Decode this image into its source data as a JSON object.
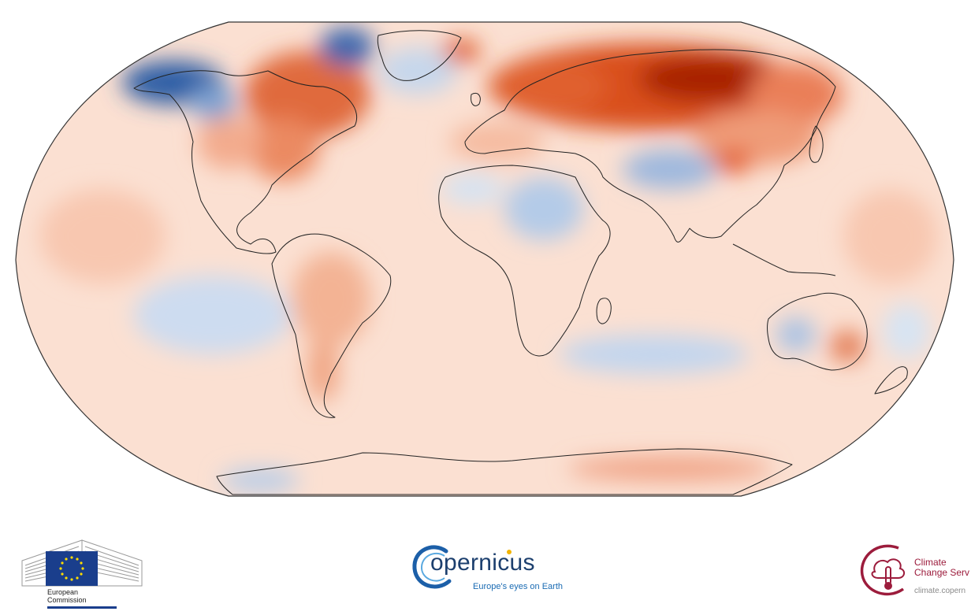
{
  "map": {
    "projection": "Robinson",
    "variable": "surface air temperature anomaly",
    "color_scale": {
      "strong_warm": "#b82a08",
      "warm": "#e05a2e",
      "mild_warm": "#f6b79d",
      "neutral": "#fbe3d6",
      "mild_cool": "#d6e3f2",
      "cool": "#7fa4d4",
      "strong_cool": "#20509c"
    },
    "coastline_color": "#222222"
  },
  "footer": {
    "ec": {
      "line1": "European",
      "line2": "Commission",
      "flag_color": "#1a3e8c",
      "star_color": "#ffdd00"
    },
    "copernicus": {
      "wordmark": "opernicus",
      "tagline": "Europe's eyes on Earth",
      "color": "#1c3f6e"
    },
    "c3s": {
      "line1": "Climate",
      "line2": "Change Serv",
      "url": "climate.copern",
      "color": "#9c1c3c"
    }
  }
}
